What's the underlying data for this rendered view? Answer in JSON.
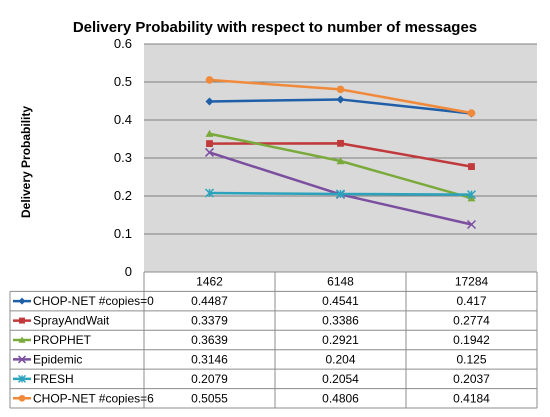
{
  "chart_data": {
    "type": "line",
    "title": "Delivery Probability with respect to number of messages",
    "xlabel": "",
    "ylabel": "Delivery Probability",
    "categories": [
      "1462",
      "6148",
      "17284"
    ],
    "ylim": [
      0,
      0.6
    ],
    "yticks": [
      "0",
      "0.1",
      "0.2",
      "0.3",
      "0.4",
      "0.5",
      "0.6"
    ],
    "grid": true,
    "legend": "data table",
    "series": [
      {
        "name": "CHOP-NET #copies=0",
        "values": [
          0.4487,
          0.4541,
          0.417
        ],
        "labels": [
          "0.4487",
          "0.4541",
          "0.417"
        ],
        "color": "#1f5fa8",
        "marker": "diamond"
      },
      {
        "name": "SprayAndWait",
        "values": [
          0.3379,
          0.3386,
          0.2774
        ],
        "labels": [
          "0.3379",
          "0.3386",
          "0.2774"
        ],
        "color": "#c0393b",
        "marker": "square"
      },
      {
        "name": "PROPHET",
        "values": [
          0.3639,
          0.2921,
          0.1942
        ],
        "labels": [
          "0.3639",
          "0.2921",
          "0.1942"
        ],
        "color": "#7aaa3c",
        "marker": "triangle"
      },
      {
        "name": "Epidemic",
        "values": [
          0.3146,
          0.204,
          0.125
        ],
        "labels": [
          "0.3146",
          "0.204",
          "0.125"
        ],
        "color": "#7b4fa0",
        "marker": "x"
      },
      {
        "name": "FRESH",
        "values": [
          0.2079,
          0.2054,
          0.2037
        ],
        "labels": [
          "0.2079",
          "0.2054",
          "0.2037"
        ],
        "color": "#2ba3bd",
        "marker": "star"
      },
      {
        "name": "CHOP-NET #copies=6",
        "values": [
          0.5055,
          0.4806,
          0.4184
        ],
        "labels": [
          "0.5055",
          "0.4806",
          "0.4184"
        ],
        "color": "#f08a3a",
        "marker": "circle"
      }
    ]
  }
}
